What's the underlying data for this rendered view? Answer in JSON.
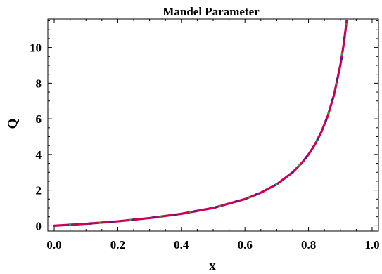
{
  "chart_data": {
    "type": "line",
    "title": "Mandel Parameter",
    "xlabel": "x",
    "ylabel": "Q",
    "xlim": [
      -0.02,
      1.02
    ],
    "ylim": [
      -0.3,
      11.6
    ],
    "x_ticks": [
      0.0,
      0.2,
      0.4,
      0.6,
      0.8,
      1.0
    ],
    "x_tick_labels": [
      "0.0",
      "0.2",
      "0.4",
      "0.6",
      "0.8",
      "1.0"
    ],
    "y_ticks": [
      0,
      2,
      4,
      6,
      8,
      10
    ],
    "y_tick_labels": [
      "0",
      "2",
      "4",
      "6",
      "8",
      "10"
    ],
    "grid": false,
    "series": [
      {
        "color": "#cc0055",
        "dash_colors": [
          "#cc0055",
          "#22aa22",
          "#3322aa"
        ],
        "x": [
          0.0,
          0.1,
          0.2,
          0.3,
          0.4,
          0.5,
          0.6,
          0.65,
          0.7,
          0.75,
          0.78,
          0.8,
          0.82,
          0.84,
          0.86,
          0.88,
          0.9,
          0.91,
          0.92
        ],
        "y": [
          0.0,
          0.11,
          0.25,
          0.43,
          0.67,
          1.0,
          1.5,
          1.86,
          2.33,
          3.0,
          3.55,
          4.0,
          4.56,
          5.25,
          6.14,
          7.33,
          9.0,
          10.11,
          11.5
        ]
      }
    ]
  }
}
